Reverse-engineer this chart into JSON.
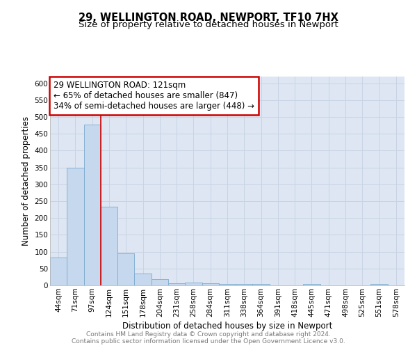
{
  "title1": "29, WELLINGTON ROAD, NEWPORT, TF10 7HX",
  "title2": "Size of property relative to detached houses in Newport",
  "xlabel": "Distribution of detached houses by size in Newport",
  "ylabel": "Number of detached properties",
  "categories": [
    "44sqm",
    "71sqm",
    "97sqm",
    "124sqm",
    "151sqm",
    "178sqm",
    "204sqm",
    "231sqm",
    "258sqm",
    "284sqm",
    "311sqm",
    "338sqm",
    "364sqm",
    "391sqm",
    "418sqm",
    "445sqm",
    "471sqm",
    "498sqm",
    "525sqm",
    "551sqm",
    "578sqm"
  ],
  "values": [
    83,
    350,
    478,
    234,
    96,
    36,
    18,
    7,
    9,
    6,
    4,
    4,
    4,
    0,
    0,
    5,
    0,
    0,
    0,
    4,
    0
  ],
  "bar_color": "#c5d8ed",
  "bar_edge_color": "#7aabcf",
  "vline_color": "#cc0000",
  "annotation_lines": [
    "29 WELLINGTON ROAD: 121sqm",
    "← 65% of detached houses are smaller (847)",
    "34% of semi-detached houses are larger (448) →"
  ],
  "annotation_box_color": "#ffffff",
  "annotation_box_edge": "#cc0000",
  "ylim": [
    0,
    620
  ],
  "yticks": [
    0,
    50,
    100,
    150,
    200,
    250,
    300,
    350,
    400,
    450,
    500,
    550,
    600
  ],
  "grid_color": "#c8d4e4",
  "bg_color": "#dde6f2",
  "footer": "Contains HM Land Registry data © Crown copyright and database right 2024.\nContains public sector information licensed under the Open Government Licence v3.0.",
  "title1_fontsize": 10.5,
  "title2_fontsize": 9.5,
  "xlabel_fontsize": 8.5,
  "ylabel_fontsize": 8.5,
  "tick_fontsize": 7.5,
  "footer_fontsize": 6.5,
  "ann_fontsize": 8.5
}
